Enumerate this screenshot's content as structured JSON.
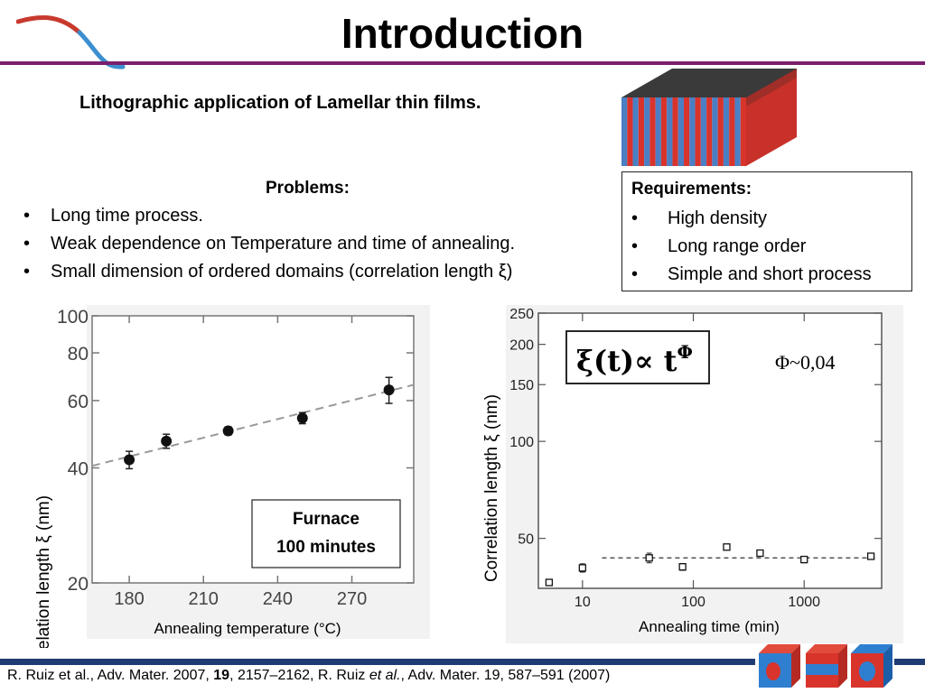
{
  "slide": {
    "title": "Introduction",
    "subtitle": "Lithographic application of Lamellar thin films.",
    "colors": {
      "rule": "#7a1f6e",
      "footer_bar": "#1f3b73",
      "lamella_blue": "#4a7fc4",
      "lamella_red": "#d8342c"
    }
  },
  "problems": {
    "heading": "Problems:",
    "items": [
      "Long time process.",
      "Weak dependence on Temperature and time of annealing.",
      "Small dimension of ordered domains (correlation length ξ)"
    ]
  },
  "requirements": {
    "heading": "Requirements:",
    "items": [
      "High density",
      "Long range order",
      "Simple and short process"
    ]
  },
  "chart_data": [
    {
      "type": "scatter",
      "xlabel": "Annealing temperature (°C)",
      "ylabel": "Correlation length ξ (nm)",
      "xlim": [
        165,
        295
      ],
      "ylim": [
        20,
        100
      ],
      "yscale": "log",
      "xticks": [
        180,
        210,
        240,
        270
      ],
      "yticks": [
        20,
        40,
        60,
        80,
        100
      ],
      "x": [
        180,
        195,
        220,
        250,
        285
      ],
      "y": [
        42,
        47,
        50,
        54,
        64
      ],
      "yerr": [
        2.2,
        2,
        1.2,
        1.8,
        5
      ],
      "fit_line": {
        "x": [
          165,
          295
        ],
        "y": [
          40.5,
          66
        ]
      },
      "annotation": {
        "line1": "Furnace",
        "line2": "100 minutes"
      },
      "grid": false
    },
    {
      "type": "scatter",
      "xlabel": "Annealing time (min)",
      "ylabel": "Correlation length ξ (nm)",
      "xscale": "log",
      "yscale": "log",
      "xlim": [
        4,
        5000
      ],
      "ylim": [
        35,
        250
      ],
      "xticks": [
        "10",
        "100",
        "1000"
      ],
      "yticks": [
        "50",
        "100",
        "150",
        "200",
        "250"
      ],
      "x": [
        5,
        10,
        40,
        80,
        200,
        400,
        1000,
        4000
      ],
      "y": [
        36.5,
        40.5,
        43.5,
        40.8,
        47,
        45,
        43,
        44
      ],
      "yerr": [
        0.8,
        1.2,
        1.5,
        1,
        1,
        1,
        1,
        0.8
      ],
      "fit_line": {
        "x": [
          15,
          4500
        ],
        "y": [
          43.5,
          43.5
        ]
      },
      "formula": "ξ(t)∝ t",
      "formula_exp": "Φ",
      "phi_note": "Φ~0,04",
      "grid": false
    }
  ],
  "footer": {
    "part1": "R. Ruiz et al., Adv. Mater. 2007, ",
    "vol": "19",
    "part2": ", 2157–2162, R. Ruiz ",
    "etal": "et al.",
    "part3": ", Adv. Mater. 19, 587–591 (2007)"
  }
}
